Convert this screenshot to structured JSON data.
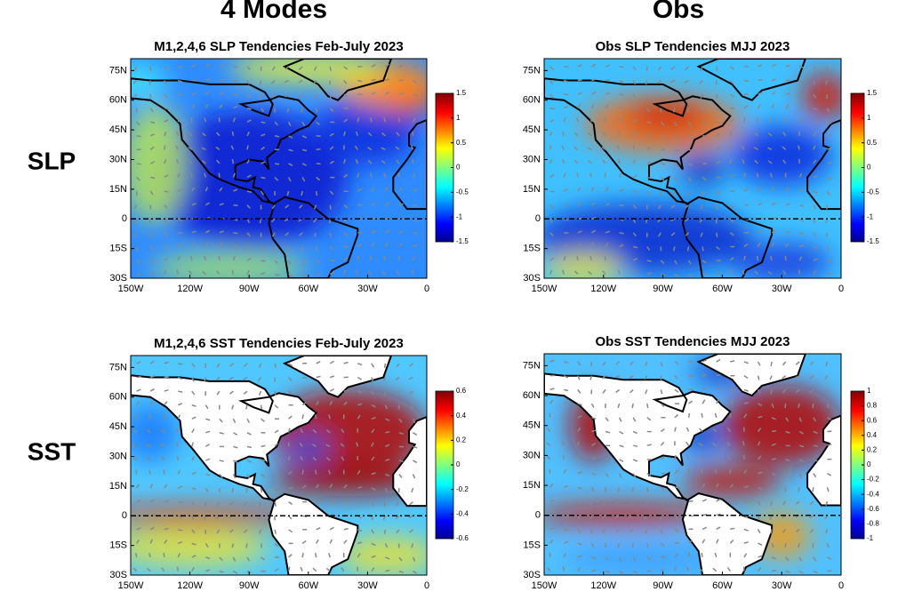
{
  "columns": [
    "4 Modes",
    "Obs"
  ],
  "rows": [
    "SLP",
    "SST"
  ],
  "panels": [
    {
      "title": "M1,2,4,6  SLP Tendencies Feb-July 2023",
      "xlim": [
        -150,
        0
      ],
      "ylim": [
        -30,
        81
      ],
      "xticks": [
        {
          "value": -150,
          "label": "150W"
        },
        {
          "value": -120,
          "label": "120W"
        },
        {
          "value": -90,
          "label": "90W"
        },
        {
          "value": -60,
          "label": "60W"
        },
        {
          "value": -30,
          "label": "30W"
        },
        0
      ],
      "yticks": [
        {
          "value": 75,
          "label": "75N"
        },
        {
          "value": 60,
          "label": "60N"
        },
        {
          "value": 45,
          "label": "45N"
        },
        {
          "value": 30,
          "label": "30N"
        },
        {
          "value": 15,
          "label": "15N"
        },
        0,
        {
          "value": -15,
          "label": "15S"
        },
        {
          "value": -30,
          "label": "30S"
        }
      ],
      "clim": [
        -1.5,
        1.5
      ],
      "cticks": [
        1.5,
        1,
        0.5,
        0,
        -0.5,
        -1,
        -1.5
      ]
    },
    {
      "title": "Obs  SLP Tendencies MJJ 2023",
      "xlim": [
        -150,
        0
      ],
      "ylim": [
        -30,
        81
      ],
      "xticks": [
        {
          "value": -150,
          "label": "150W"
        },
        {
          "value": -120,
          "label": "120W"
        },
        {
          "value": -90,
          "label": "90W"
        },
        {
          "value": -60,
          "label": "60W"
        },
        {
          "value": -30,
          "label": "30W"
        },
        0
      ],
      "yticks": [
        {
          "value": 75,
          "label": "75N"
        },
        {
          "value": 60,
          "label": "60N"
        },
        {
          "value": 45,
          "label": "45N"
        },
        {
          "value": 30,
          "label": "30N"
        },
        {
          "value": 15,
          "label": "15N"
        },
        0,
        {
          "value": -15,
          "label": "15S"
        },
        {
          "value": -30,
          "label": "30S"
        }
      ],
      "clim": [
        -1.5,
        1.5
      ],
      "cticks": [
        1.5,
        1,
        0.5,
        0,
        -0.5,
        -1,
        -1.5
      ]
    },
    {
      "title": "M1,2,4,6  SST Tendencies Feb-July 2023",
      "xlim": [
        -150,
        0
      ],
      "ylim": [
        -30,
        81
      ],
      "xticks": [
        {
          "value": -150,
          "label": "150W"
        },
        {
          "value": -120,
          "label": "120W"
        },
        {
          "value": -90,
          "label": "90W"
        },
        {
          "value": -60,
          "label": "60W"
        },
        {
          "value": -30,
          "label": "30W"
        },
        0
      ],
      "yticks": [
        {
          "value": 75,
          "label": "75N"
        },
        {
          "value": 60,
          "label": "60N"
        },
        {
          "value": 45,
          "label": "45N"
        },
        {
          "value": 30,
          "label": "30N"
        },
        {
          "value": 15,
          "label": "15N"
        },
        0,
        {
          "value": -15,
          "label": "15S"
        },
        {
          "value": -30,
          "label": "30S"
        }
      ],
      "clim": [
        -0.6,
        0.6
      ],
      "cticks": [
        0.6,
        0.4,
        0.2,
        0,
        -0.2,
        -0.4,
        -0.6
      ]
    },
    {
      "title": "Obs  SST Tendencies MJJ 2023",
      "xlim": [
        -150,
        0
      ],
      "ylim": [
        -30,
        81
      ],
      "xticks": [
        {
          "value": -150,
          "label": "150W"
        },
        {
          "value": -120,
          "label": "120W"
        },
        {
          "value": -90,
          "label": "90W"
        },
        {
          "value": -60,
          "label": "60W"
        },
        {
          "value": -30,
          "label": "30W"
        },
        0
      ],
      "yticks": [
        {
          "value": 75,
          "label": "75N"
        },
        {
          "value": 60,
          "label": "60N"
        },
        {
          "value": 45,
          "label": "45N"
        },
        {
          "value": 30,
          "label": "30N"
        },
        {
          "value": 15,
          "label": "15N"
        },
        0,
        {
          "value": -15,
          "label": "15S"
        },
        {
          "value": -30,
          "label": "30S"
        }
      ],
      "clim": [
        -1,
        1
      ],
      "cticks": [
        1,
        0.8,
        0.6,
        0.4,
        0.2,
        0,
        -0.2,
        -0.4,
        -0.6,
        -0.8,
        -1
      ]
    }
  ]
}
